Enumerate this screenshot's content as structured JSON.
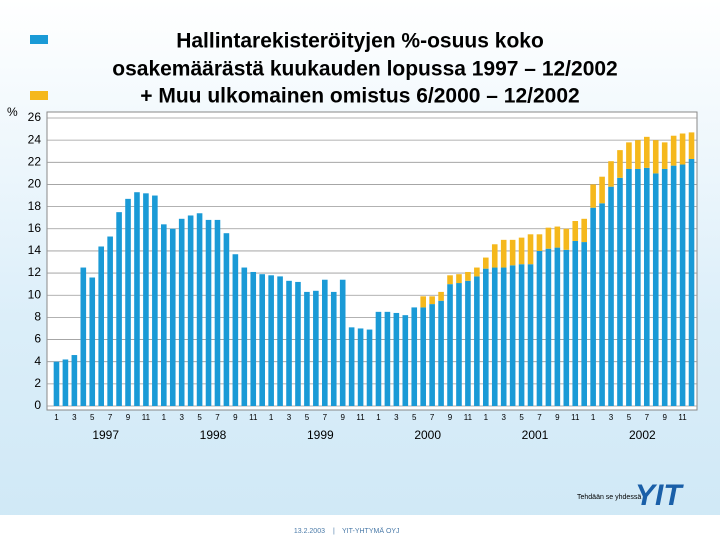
{
  "chart_data": {
    "type": "stacked_bar",
    "title": [
      "Hallintarekisteröityjen %-osuus koko",
      "osakemäärästä kuukauden lopussa 1997 – 12/2002",
      "+ Muu ulkomainen omistus 6/2000 – 12/2002"
    ],
    "y_label": "%",
    "categories": [
      "1",
      null,
      "3",
      null,
      "5",
      null,
      "7",
      null,
      "9",
      null,
      "11",
      null,
      "1",
      null,
      "3",
      null,
      "5",
      null,
      "7",
      null,
      "9",
      null,
      "11",
      null,
      "1",
      null,
      "3",
      null,
      "5",
      null,
      "7",
      null,
      "9",
      null,
      "11",
      null,
      "1",
      null,
      "3",
      null,
      "5",
      null,
      "7",
      null,
      "9",
      null,
      "11",
      null,
      "1",
      null,
      "3",
      null,
      "5",
      null,
      "7",
      null,
      "9",
      null,
      "11",
      null,
      "1",
      null,
      "3",
      null,
      "5",
      null,
      "7",
      null,
      "9",
      null,
      "11",
      null
    ],
    "year_labels": [
      "1997",
      "1998",
      "1999",
      "2000",
      "2001",
      "2002"
    ],
    "series": [
      {
        "color": "#1a9ad6",
        "values": [
          4.0,
          4.2,
          4.6,
          12.5,
          11.6,
          14.4,
          15.3,
          17.5,
          18.7,
          19.3,
          19.2,
          19.0,
          16.4,
          16.0,
          16.9,
          17.2,
          17.4,
          16.8,
          16.8,
          15.6,
          13.7,
          12.5,
          12.1,
          11.9,
          11.8,
          11.7,
          11.3,
          11.2,
          10.3,
          10.4,
          11.4,
          10.3,
          11.4,
          7.1,
          7.0,
          6.9,
          8.5,
          8.5,
          8.4,
          8.2,
          8.9,
          8.9,
          9.2,
          9.5,
          11.0,
          11.1,
          11.3,
          11.7,
          12.4,
          12.5,
          12.5,
          12.7,
          12.8,
          12.8,
          14.0,
          14.2,
          14.3,
          14.1,
          14.9,
          14.8,
          17.9,
          18.3,
          19.8,
          20.6,
          21.4,
          21.4,
          21.5,
          21.0,
          21.4,
          21.7,
          21.8,
          22.3
        ]
      },
      {
        "color": "#f5b81c",
        "values": [
          null,
          null,
          null,
          null,
          null,
          null,
          null,
          null,
          null,
          null,
          null,
          null,
          null,
          null,
          null,
          null,
          null,
          null,
          null,
          null,
          null,
          null,
          null,
          null,
          null,
          null,
          null,
          null,
          null,
          null,
          null,
          null,
          null,
          null,
          null,
          null,
          null,
          null,
          null,
          null,
          null,
          1.0,
          0.7,
          0.8,
          0.8,
          0.8,
          0.8,
          0.8,
          1.0,
          2.1,
          2.5,
          2.3,
          2.4,
          2.7,
          1.5,
          1.9,
          1.9,
          1.9,
          1.8,
          2.1,
          2.1,
          2.4,
          2.3,
          2.5,
          2.4,
          2.6,
          2.8,
          3.0,
          2.4,
          2.7,
          2.8,
          2.4
        ]
      }
    ],
    "ylim": [
      0,
      26
    ],
    "yticks": [
      0,
      2,
      4,
      6,
      8,
      10,
      12,
      14,
      16,
      18,
      20,
      22,
      24,
      26
    ],
    "grid": true
  },
  "footer": {
    "slogan": "Tehdään se yhdessä",
    "date": "13.2.2003",
    "company": "YIT-YHTYMÄ OYJ",
    "logo": "YIT"
  }
}
